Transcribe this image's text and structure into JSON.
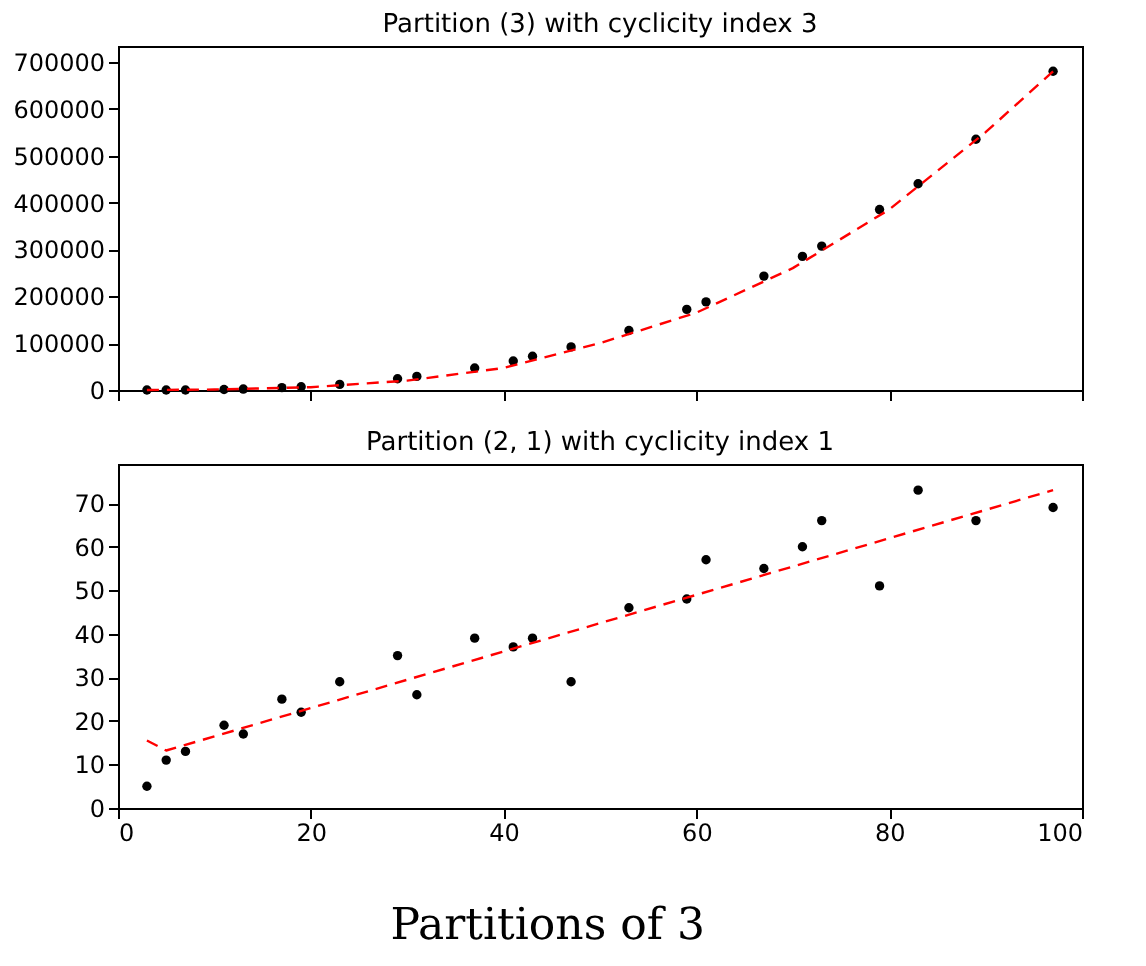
{
  "chart_data": [
    {
      "type": "scatter",
      "title": "Partition (3) with cyclicity index 3",
      "x": [
        3,
        5,
        7,
        11,
        13,
        17,
        19,
        23,
        29,
        31,
        37,
        41,
        43,
        47,
        53,
        59,
        61,
        67,
        71,
        73,
        79,
        83,
        89,
        97
      ],
      "xlim": [
        0,
        100
      ],
      "xticks": [
        0,
        20,
        40,
        60,
        80,
        100
      ],
      "ylim": [
        0,
        734000
      ],
      "yticks": [
        0,
        100000,
        200000,
        300000,
        400000,
        500000,
        600000,
        700000
      ],
      "tick_labels": "y",
      "grid": false,
      "series": [
        {
          "color": "#000000",
          "marker": "circle",
          "values": [
            0,
            0,
            0,
            1000,
            2000,
            5000,
            7000,
            12000,
            24000,
            29000,
            47000,
            62000,
            72000,
            92000,
            127000,
            172000,
            188000,
            243000,
            285000,
            307000,
            385000,
            440000,
            535000,
            680000
          ]
        },
        {
          "type": "line",
          "color": "#ff0000",
          "line_style": "dashed",
          "marker": "none",
          "x": [
            3,
            10,
            20,
            30,
            40,
            50,
            60,
            70,
            80,
            90,
            97
          ],
          "values": [
            0,
            1000,
            6000,
            20000,
            47000,
            100000,
            165000,
            260000,
            385000,
            550000,
            680000
          ]
        }
      ]
    },
    {
      "type": "scatter",
      "title": "Partition (2, 1) with cyclicity index 1",
      "x": [
        3,
        5,
        7,
        11,
        13,
        17,
        19,
        23,
        29,
        31,
        37,
        41,
        43,
        47,
        53,
        59,
        61,
        67,
        71,
        73,
        79,
        83,
        89,
        97
      ],
      "xlim": [
        0,
        100
      ],
      "xticks": [
        0,
        20,
        40,
        60,
        80,
        100
      ],
      "ylim": [
        0,
        79
      ],
      "yticks": [
        0,
        10,
        20,
        30,
        40,
        50,
        60,
        70
      ],
      "grid": false,
      "annotations": [
        "Partitions of 3"
      ],
      "series": [
        {
          "color": "#000000",
          "marker": "circle",
          "values": [
            5,
            11,
            13,
            19,
            17,
            25,
            22,
            29,
            35,
            26,
            39,
            37,
            39,
            29,
            46,
            48,
            57,
            55,
            60,
            66,
            51,
            73,
            66,
            69
          ]
        },
        {
          "type": "line",
          "color": "#ff0000",
          "line_style": "dashed",
          "marker": "none",
          "x": [
            3,
            5,
            97
          ],
          "values": [
            15.5,
            13.2,
            73
          ]
        }
      ]
    }
  ]
}
